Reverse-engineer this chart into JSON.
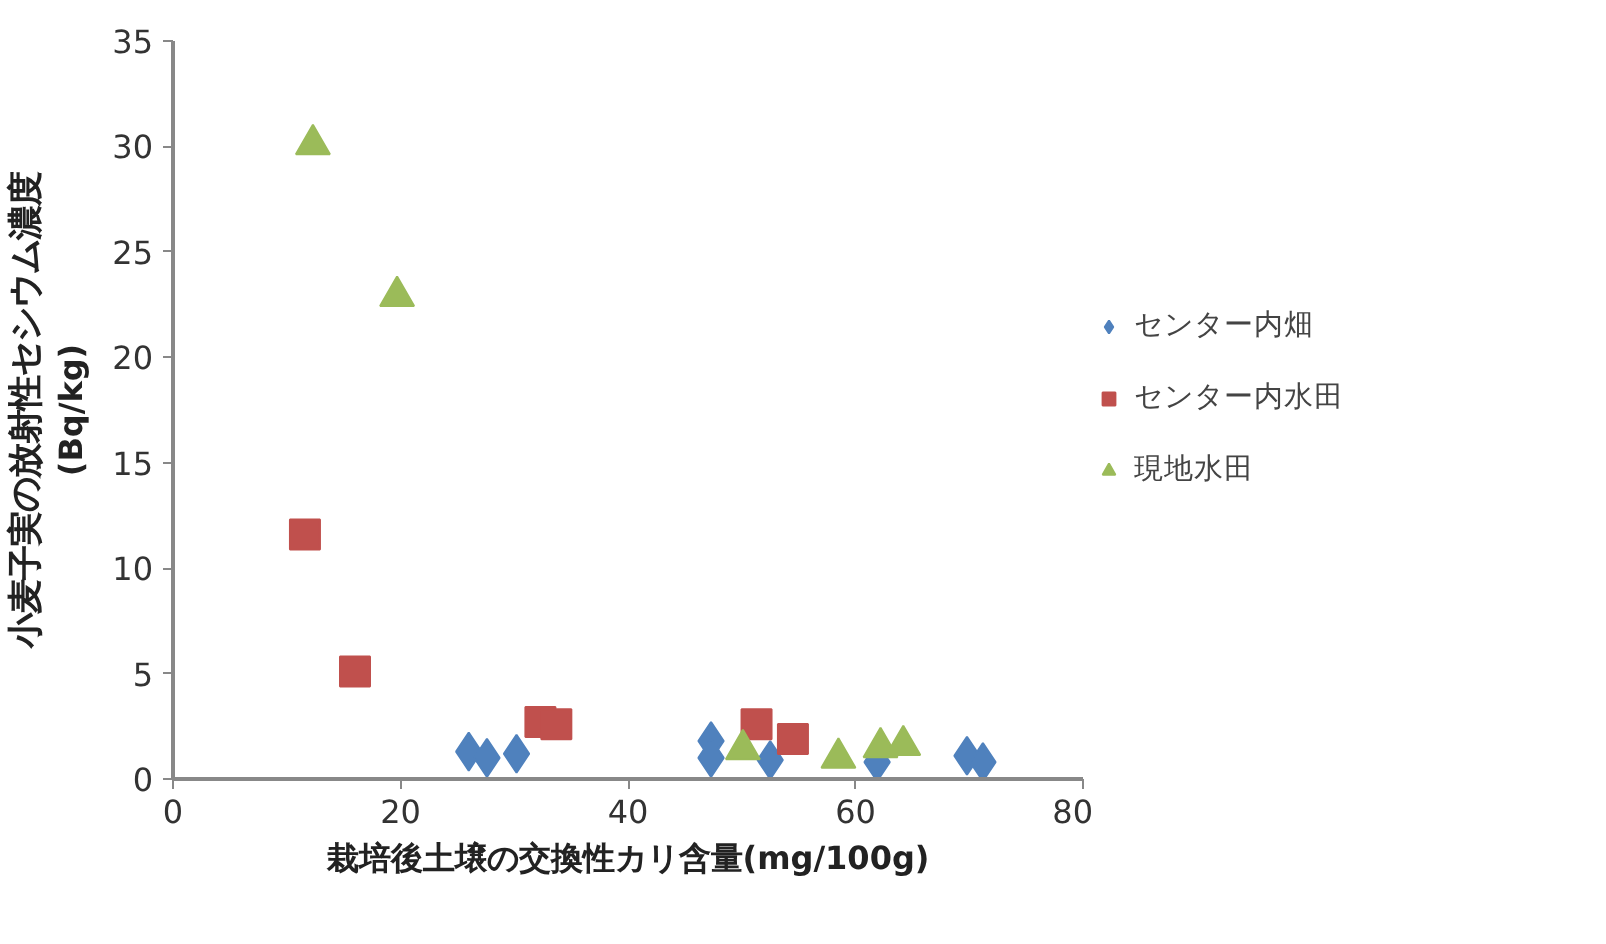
{
  "chart_data": {
    "type": "scatter",
    "xlabel": "栽培後土壌の交換性カリ含量(mg/100g)",
    "ylabel": "小麦子実の放射性セシウム濃度",
    "y2label": "(Bq/kg)",
    "xlim": [
      0,
      80
    ],
    "ylim": [
      0,
      35
    ],
    "xticks": [
      0,
      20,
      40,
      60,
      80
    ],
    "yticks": [
      0,
      5,
      10,
      15,
      20,
      25,
      30,
      35
    ],
    "grid": false,
    "legend": "right",
    "series": [
      {
        "name": "センター内畑",
        "color": "#4f81bd",
        "marker": "diamond",
        "x": [
          26.0,
          27.6,
          30.2,
          47.3,
          47.3,
          52.5,
          61.9,
          69.8,
          71.2
        ],
        "values": [
          1.3,
          1.0,
          1.2,
          1.8,
          1.0,
          0.9,
          0.8,
          1.1,
          0.8
        ]
      },
      {
        "name": "センター内水田",
        "color": "#c0504d",
        "marker": "square",
        "x": [
          11.6,
          16.0,
          32.3,
          33.7,
          51.3,
          54.5
        ],
        "values": [
          11.6,
          5.1,
          2.7,
          2.6,
          2.6,
          1.9
        ]
      },
      {
        "name": "現地水田",
        "color": "#9bbb59",
        "marker": "triangle",
        "x": [
          12.3,
          19.7,
          50.1,
          58.5,
          62.2,
          64.2
        ],
        "values": [
          30.1,
          22.9,
          1.4,
          1.0,
          1.5,
          1.6
        ]
      }
    ]
  }
}
